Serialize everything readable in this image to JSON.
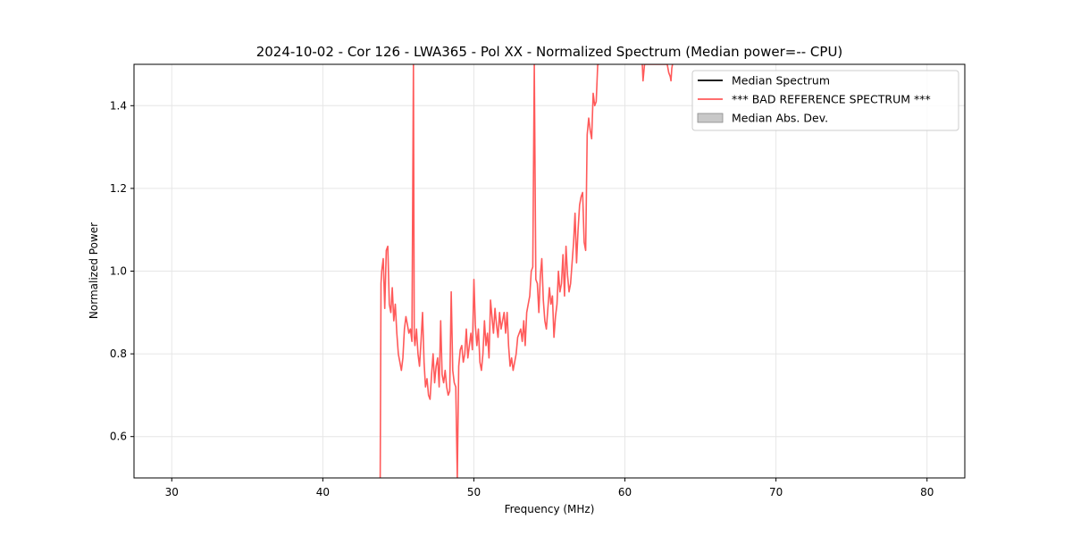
{
  "chart_data": {
    "type": "line",
    "title": "2024-10-02 - Cor 126 - LWA365 - Pol XX - Normalized Spectrum (Median power=-- CPU)",
    "xlabel": "Frequency (MHz)",
    "ylabel": "Normalized Power",
    "xlim": [
      27.5,
      82.5
    ],
    "ylim": [
      0.5,
      1.5
    ],
    "x_ticks": [
      30,
      40,
      50,
      60,
      70,
      80
    ],
    "y_ticks": [
      0.6,
      0.8,
      1.0,
      1.2,
      1.4
    ],
    "grid": true,
    "legend_position": "top-right",
    "legend": [
      {
        "label": "Median Spectrum",
        "kind": "line",
        "color": "#000000"
      },
      {
        "label": "*** BAD REFERENCE SPECTRUM ***",
        "kind": "line",
        "color": "#ff5a5a"
      },
      {
        "label": "Median Abs. Dev.",
        "kind": "patch",
        "color": "#c8c8c8"
      }
    ],
    "series": [
      {
        "name": "*** BAD REFERENCE SPECTRUM ***",
        "color": "#ff5a5a",
        "x": [
          43.8,
          43.85,
          43.9,
          44.0,
          44.1,
          44.2,
          44.3,
          44.4,
          44.5,
          44.6,
          44.7,
          44.8,
          44.9,
          45.0,
          45.1,
          45.2,
          45.3,
          45.4,
          45.5,
          45.6,
          45.7,
          45.8,
          45.9,
          46.0,
          46.05,
          46.1,
          46.2,
          46.3,
          46.4,
          46.5,
          46.6,
          46.7,
          46.8,
          46.9,
          47.0,
          47.1,
          47.2,
          47.3,
          47.4,
          47.5,
          47.6,
          47.7,
          47.8,
          47.9,
          48.0,
          48.1,
          48.2,
          48.3,
          48.4,
          48.5,
          48.6,
          48.7,
          48.8,
          48.9,
          49.0,
          49.1,
          49.2,
          49.3,
          49.4,
          49.5,
          49.6,
          49.7,
          49.8,
          49.9,
          50.0,
          50.1,
          50.2,
          50.3,
          50.4,
          50.5,
          50.6,
          50.7,
          50.8,
          50.9,
          51.0,
          51.1,
          51.2,
          51.3,
          51.4,
          51.5,
          51.6,
          51.7,
          51.8,
          51.9,
          52.0,
          52.1,
          52.2,
          52.3,
          52.4,
          52.5,
          52.6,
          52.7,
          52.8,
          52.9,
          53.0,
          53.1,
          53.2,
          53.3,
          53.4,
          53.5,
          53.6,
          53.7,
          53.8,
          53.9,
          54.0,
          54.1,
          54.2,
          54.3,
          54.4,
          54.5,
          54.6,
          54.7,
          54.8,
          54.9,
          55.0,
          55.1,
          55.2,
          55.3,
          55.4,
          55.5,
          55.6,
          55.7,
          55.8,
          55.9,
          56.0,
          56.1,
          56.2,
          56.3,
          56.4,
          56.5,
          56.6,
          56.7,
          56.8,
          56.9,
          57.0,
          57.1,
          57.2,
          57.3,
          57.4,
          57.5,
          57.6,
          57.7,
          57.8,
          57.9,
          58.0,
          58.1,
          58.2,
          58.3
        ],
        "y": [
          0.5,
          0.97,
          1.0,
          1.03,
          0.91,
          1.05,
          1.06,
          0.92,
          0.9,
          0.96,
          0.88,
          0.92,
          0.85,
          0.8,
          0.78,
          0.76,
          0.79,
          0.86,
          0.89,
          0.87,
          0.85,
          0.86,
          0.83,
          1.5,
          0.84,
          0.82,
          0.86,
          0.8,
          0.77,
          0.83,
          0.9,
          0.78,
          0.72,
          0.74,
          0.7,
          0.69,
          0.75,
          0.8,
          0.73,
          0.77,
          0.79,
          0.72,
          0.88,
          0.75,
          0.73,
          0.76,
          0.72,
          0.7,
          0.71,
          0.95,
          0.76,
          0.73,
          0.72,
          0.5,
          0.77,
          0.81,
          0.82,
          0.78,
          0.8,
          0.86,
          0.79,
          0.82,
          0.85,
          0.81,
          0.98,
          0.87,
          0.82,
          0.86,
          0.78,
          0.76,
          0.8,
          0.88,
          0.82,
          0.85,
          0.79,
          0.93,
          0.89,
          0.85,
          0.91,
          0.87,
          0.84,
          0.9,
          0.86,
          0.88,
          0.9,
          0.85,
          0.9,
          0.82,
          0.77,
          0.79,
          0.76,
          0.78,
          0.8,
          0.84,
          0.85,
          0.86,
          0.83,
          0.88,
          0.82,
          0.9,
          0.92,
          0.94,
          1.0,
          1.01,
          1.5,
          0.98,
          0.97,
          0.9,
          0.99,
          1.03,
          0.93,
          0.88,
          0.86,
          0.91,
          0.96,
          0.92,
          0.94,
          0.84,
          0.89,
          0.92,
          1.0,
          0.95,
          0.97,
          1.04,
          0.94,
          1.06,
          0.99,
          0.95,
          0.97,
          1.02,
          1.07,
          1.14,
          1.02,
          1.1,
          1.16,
          1.18,
          1.19,
          1.07,
          1.05,
          1.33,
          1.37,
          1.34,
          1.32,
          1.43,
          1.4,
          1.41,
          1.5,
          1.5
        ]
      },
      {
        "name": "*** BAD REFERENCE SPECTRUM ***",
        "color": "#ff5a5a",
        "x": [
          61.15,
          61.2,
          61.3,
          61.4,
          62.8,
          62.9,
          63.0,
          63.05,
          63.1,
          63.15
        ],
        "y": [
          1.5,
          1.46,
          1.5,
          1.5,
          1.5,
          1.48,
          1.47,
          1.46,
          1.49,
          1.5
        ]
      }
    ]
  }
}
